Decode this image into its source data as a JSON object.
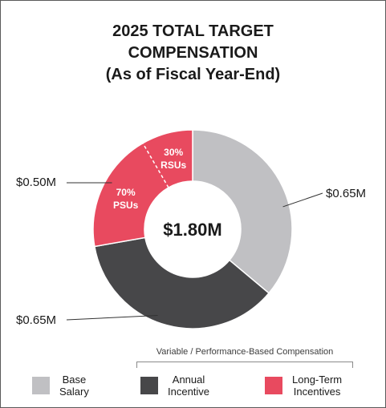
{
  "title_lines": [
    "2025 TOTAL TARGET",
    "COMPENSATION",
    "(As of Fiscal Year-End)"
  ],
  "colors": {
    "base_salary": "#c0c0c3",
    "annual_incentive": "#474749",
    "long_term_incentives": "#e84a5f",
    "text": "#1a1a1a"
  },
  "chart_data": {
    "type": "pie",
    "donut": true,
    "center_label": "$1.80M",
    "slices": [
      {
        "name": "Base Salary",
        "value": 0.65,
        "label": "$0.65M",
        "color": "#c0c0c3"
      },
      {
        "name": "Annual Incentive",
        "value": 0.65,
        "label": "$0.65M",
        "color": "#474749"
      },
      {
        "name": "Long-Term Incentives",
        "value": 0.5,
        "label": "$0.50M",
        "color": "#e84a5f",
        "subdivisions": [
          {
            "pct_label": "70%",
            "type_label": "PSUs",
            "share": 0.7
          },
          {
            "pct_label": "30%",
            "type_label": "RSUs",
            "share": 0.3
          }
        ]
      }
    ],
    "legend": [
      {
        "line1": "Base",
        "line2": "Salary",
        "color": "#c0c0c3"
      },
      {
        "line1": "Annual",
        "line2": "Incentive",
        "color": "#474749"
      },
      {
        "line1": "Long-Term",
        "line2": "Incentives",
        "color": "#e84a5f"
      }
    ],
    "legend_group_label": "Variable / Performance-Based Compensation",
    "legend_placement": "bottom"
  }
}
